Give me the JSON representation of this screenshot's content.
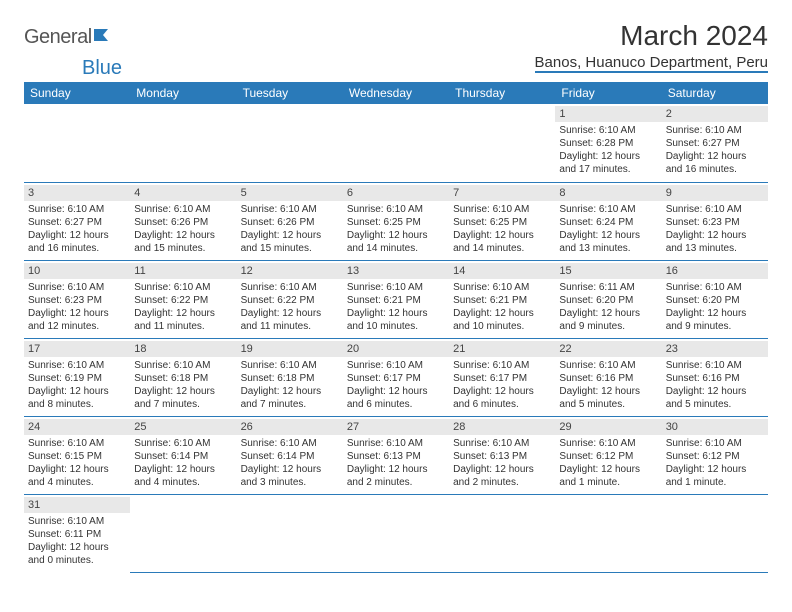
{
  "logo": {
    "text1": "General",
    "text2": "Blue"
  },
  "title": "March 2024",
  "location": "Banos, Huanuco Department, Peru",
  "daynames": [
    "Sunday",
    "Monday",
    "Tuesday",
    "Wednesday",
    "Thursday",
    "Friday",
    "Saturday"
  ],
  "colors": {
    "header_bg": "#2a7ab9",
    "border": "#2a7ab9",
    "daynum_bg": "#e8e8e8"
  },
  "weeks": [
    [
      null,
      null,
      null,
      null,
      null,
      {
        "n": "1",
        "sr": "Sunrise: 6:10 AM",
        "ss": "Sunset: 6:28 PM",
        "dl": "Daylight: 12 hours and 17 minutes."
      },
      {
        "n": "2",
        "sr": "Sunrise: 6:10 AM",
        "ss": "Sunset: 6:27 PM",
        "dl": "Daylight: 12 hours and 16 minutes."
      }
    ],
    [
      {
        "n": "3",
        "sr": "Sunrise: 6:10 AM",
        "ss": "Sunset: 6:27 PM",
        "dl": "Daylight: 12 hours and 16 minutes."
      },
      {
        "n": "4",
        "sr": "Sunrise: 6:10 AM",
        "ss": "Sunset: 6:26 PM",
        "dl": "Daylight: 12 hours and 15 minutes."
      },
      {
        "n": "5",
        "sr": "Sunrise: 6:10 AM",
        "ss": "Sunset: 6:26 PM",
        "dl": "Daylight: 12 hours and 15 minutes."
      },
      {
        "n": "6",
        "sr": "Sunrise: 6:10 AM",
        "ss": "Sunset: 6:25 PM",
        "dl": "Daylight: 12 hours and 14 minutes."
      },
      {
        "n": "7",
        "sr": "Sunrise: 6:10 AM",
        "ss": "Sunset: 6:25 PM",
        "dl": "Daylight: 12 hours and 14 minutes."
      },
      {
        "n": "8",
        "sr": "Sunrise: 6:10 AM",
        "ss": "Sunset: 6:24 PM",
        "dl": "Daylight: 12 hours and 13 minutes."
      },
      {
        "n": "9",
        "sr": "Sunrise: 6:10 AM",
        "ss": "Sunset: 6:23 PM",
        "dl": "Daylight: 12 hours and 13 minutes."
      }
    ],
    [
      {
        "n": "10",
        "sr": "Sunrise: 6:10 AM",
        "ss": "Sunset: 6:23 PM",
        "dl": "Daylight: 12 hours and 12 minutes."
      },
      {
        "n": "11",
        "sr": "Sunrise: 6:10 AM",
        "ss": "Sunset: 6:22 PM",
        "dl": "Daylight: 12 hours and 11 minutes."
      },
      {
        "n": "12",
        "sr": "Sunrise: 6:10 AM",
        "ss": "Sunset: 6:22 PM",
        "dl": "Daylight: 12 hours and 11 minutes."
      },
      {
        "n": "13",
        "sr": "Sunrise: 6:10 AM",
        "ss": "Sunset: 6:21 PM",
        "dl": "Daylight: 12 hours and 10 minutes."
      },
      {
        "n": "14",
        "sr": "Sunrise: 6:10 AM",
        "ss": "Sunset: 6:21 PM",
        "dl": "Daylight: 12 hours and 10 minutes."
      },
      {
        "n": "15",
        "sr": "Sunrise: 6:11 AM",
        "ss": "Sunset: 6:20 PM",
        "dl": "Daylight: 12 hours and 9 minutes."
      },
      {
        "n": "16",
        "sr": "Sunrise: 6:10 AM",
        "ss": "Sunset: 6:20 PM",
        "dl": "Daylight: 12 hours and 9 minutes."
      }
    ],
    [
      {
        "n": "17",
        "sr": "Sunrise: 6:10 AM",
        "ss": "Sunset: 6:19 PM",
        "dl": "Daylight: 12 hours and 8 minutes."
      },
      {
        "n": "18",
        "sr": "Sunrise: 6:10 AM",
        "ss": "Sunset: 6:18 PM",
        "dl": "Daylight: 12 hours and 7 minutes."
      },
      {
        "n": "19",
        "sr": "Sunrise: 6:10 AM",
        "ss": "Sunset: 6:18 PM",
        "dl": "Daylight: 12 hours and 7 minutes."
      },
      {
        "n": "20",
        "sr": "Sunrise: 6:10 AM",
        "ss": "Sunset: 6:17 PM",
        "dl": "Daylight: 12 hours and 6 minutes."
      },
      {
        "n": "21",
        "sr": "Sunrise: 6:10 AM",
        "ss": "Sunset: 6:17 PM",
        "dl": "Daylight: 12 hours and 6 minutes."
      },
      {
        "n": "22",
        "sr": "Sunrise: 6:10 AM",
        "ss": "Sunset: 6:16 PM",
        "dl": "Daylight: 12 hours and 5 minutes."
      },
      {
        "n": "23",
        "sr": "Sunrise: 6:10 AM",
        "ss": "Sunset: 6:16 PM",
        "dl": "Daylight: 12 hours and 5 minutes."
      }
    ],
    [
      {
        "n": "24",
        "sr": "Sunrise: 6:10 AM",
        "ss": "Sunset: 6:15 PM",
        "dl": "Daylight: 12 hours and 4 minutes."
      },
      {
        "n": "25",
        "sr": "Sunrise: 6:10 AM",
        "ss": "Sunset: 6:14 PM",
        "dl": "Daylight: 12 hours and 4 minutes."
      },
      {
        "n": "26",
        "sr": "Sunrise: 6:10 AM",
        "ss": "Sunset: 6:14 PM",
        "dl": "Daylight: 12 hours and 3 minutes."
      },
      {
        "n": "27",
        "sr": "Sunrise: 6:10 AM",
        "ss": "Sunset: 6:13 PM",
        "dl": "Daylight: 12 hours and 2 minutes."
      },
      {
        "n": "28",
        "sr": "Sunrise: 6:10 AM",
        "ss": "Sunset: 6:13 PM",
        "dl": "Daylight: 12 hours and 2 minutes."
      },
      {
        "n": "29",
        "sr": "Sunrise: 6:10 AM",
        "ss": "Sunset: 6:12 PM",
        "dl": "Daylight: 12 hours and 1 minute."
      },
      {
        "n": "30",
        "sr": "Sunrise: 6:10 AM",
        "ss": "Sunset: 6:12 PM",
        "dl": "Daylight: 12 hours and 1 minute."
      }
    ],
    [
      {
        "n": "31",
        "sr": "Sunrise: 6:10 AM",
        "ss": "Sunset: 6:11 PM",
        "dl": "Daylight: 12 hours and 0 minutes."
      },
      null,
      null,
      null,
      null,
      null,
      null
    ]
  ]
}
